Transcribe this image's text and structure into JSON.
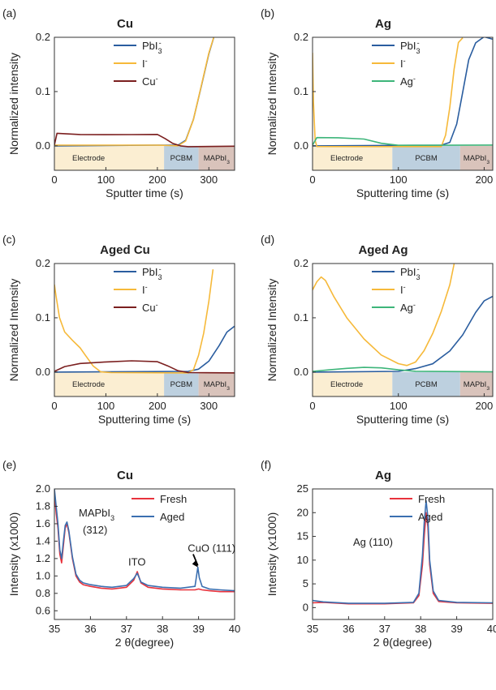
{
  "figure": {
    "colors": {
      "pbi3": "#2a5d9f",
      "iodide": "#f6b93a",
      "cu": "#7b1f1f",
      "ag": "#3db57a",
      "fresh": "#e8323c",
      "aged": "#3b6fb0",
      "electrode_bg": "#fbeed2",
      "pcbm_bg": "#bdd0df",
      "mapbi3_bg": "#d9c3bb"
    }
  },
  "chart_data": [
    {
      "panel": "(a)",
      "type": "line",
      "title": "Cu",
      "xlabel": "Sputter time (s)",
      "ylabel": "Normalized intensity",
      "xlim": [
        0,
        350
      ],
      "ylim": [
        -0.045,
        0.2
      ],
      "xticks": [
        "0",
        "100",
        "200",
        "300"
      ],
      "yticks": [
        "0.0",
        "0.1",
        "0.2"
      ],
      "regions": [
        {
          "label": "Electrode",
          "from": 0,
          "to": 213
        },
        {
          "label": "PCBM",
          "from": 213,
          "to": 280
        },
        {
          "label": "MAPbI3",
          "from": 280,
          "to": 350
        }
      ],
      "legend": [
        "PbI3-",
        "I-",
        "Cu-"
      ],
      "series": [
        {
          "name": "PbI3-",
          "color_key": "pbi3",
          "x": [
            0,
            200,
            240,
            255,
            270,
            285,
            300,
            310
          ],
          "y": [
            0,
            0,
            0,
            0.01,
            0.05,
            0.11,
            0.17,
            0.2
          ]
        },
        {
          "name": "I-",
          "color_key": "iodide",
          "x": [
            0,
            200,
            240,
            255,
            270,
            285,
            300,
            310
          ],
          "y": [
            0,
            0,
            0,
            0.01,
            0.05,
            0.11,
            0.17,
            0.2
          ]
        },
        {
          "name": "Cu-",
          "color_key": "cu",
          "x": [
            0,
            5,
            50,
            100,
            150,
            200,
            215,
            230,
            245,
            260,
            350
          ],
          "y": [
            0,
            0.023,
            0.022,
            0.022,
            0.021,
            0.02,
            0.012,
            0.004,
            0.001,
            0,
            0
          ]
        }
      ]
    },
    {
      "panel": "(b)",
      "type": "line",
      "title": "Ag",
      "xlabel": "Sputtering time (s)",
      "ylabel": "Normalized Intensity",
      "xlim": [
        0,
        210
      ],
      "ylim": [
        -0.045,
        0.2
      ],
      "xticks": [
        "0",
        "100",
        "200"
      ],
      "yticks": [
        "0.0",
        "0.1",
        "0.2"
      ],
      "regions": [
        {
          "label": "Electrode",
          "from": 0,
          "to": 93
        },
        {
          "label": "PCBM",
          "from": 93,
          "to": 172
        },
        {
          "label": "MAPbI3",
          "from": 172,
          "to": 210
        }
      ],
      "legend": [
        "PbI3-",
        "I-",
        "Ag-"
      ],
      "series": [
        {
          "name": "PbI3-",
          "color_key": "pbi3",
          "x": [
            0,
            150,
            160,
            168,
            175,
            182,
            190,
            200,
            210
          ],
          "y": [
            0,
            0,
            0.005,
            0.04,
            0.1,
            0.16,
            0.19,
            0.2,
            0.195
          ]
        },
        {
          "name": "I-",
          "color_key": "iodide",
          "x": [
            0,
            1,
            3,
            5,
            150,
            155,
            160,
            165,
            170,
            175
          ],
          "y": [
            0.17,
            0.08,
            0.01,
            0,
            0,
            0.02,
            0.07,
            0.14,
            0.19,
            0.2
          ]
        },
        {
          "name": "Ag-",
          "color_key": "ag",
          "x": [
            0,
            5,
            30,
            60,
            80,
            100,
            210
          ],
          "y": [
            0,
            0.015,
            0.016,
            0.014,
            0.005,
            0,
            0
          ]
        }
      ]
    },
    {
      "panel": "(c)",
      "type": "line",
      "title": "Aged Cu",
      "xlabel": "Sputtering time (s)",
      "ylabel": "Normalized Intensity",
      "xlim": [
        0,
        350
      ],
      "ylim": [
        -0.045,
        0.2
      ],
      "xticks": [
        "0",
        "100",
        "200",
        "300"
      ],
      "yticks": [
        "0.0",
        "0.1",
        "0.2"
      ],
      "regions": [
        {
          "label": "Electrode",
          "from": 0,
          "to": 213
        },
        {
          "label": "PCBM",
          "from": 213,
          "to": 280
        },
        {
          "label": "MAPbI3",
          "from": 280,
          "to": 350
        }
      ],
      "legend": [
        "PbI3-",
        "I-",
        "Cu-"
      ],
      "series": [
        {
          "name": "PbI3-",
          "color_key": "pbi3",
          "x": [
            0,
            260,
            280,
            300,
            320,
            335,
            350
          ],
          "y": [
            0,
            0,
            0.004,
            0.02,
            0.05,
            0.075,
            0.085
          ]
        },
        {
          "name": "I-",
          "color_key": "iodide",
          "x": [
            0,
            3,
            10,
            20,
            35,
            50,
            60,
            75,
            90,
            110,
            260,
            270,
            280,
            290,
            300,
            308
          ],
          "y": [
            0.16,
            0.14,
            0.1,
            0.075,
            0.06,
            0.045,
            0.03,
            0.01,
            0,
            0,
            0,
            0.005,
            0.03,
            0.07,
            0.13,
            0.19
          ]
        },
        {
          "name": "Cu-",
          "color_key": "cu",
          "x": [
            0,
            20,
            50,
            100,
            150,
            200,
            220,
            240,
            260,
            350
          ],
          "y": [
            0,
            0.01,
            0.017,
            0.02,
            0.021,
            0.018,
            0.01,
            0.002,
            0,
            0
          ]
        }
      ]
    },
    {
      "panel": "(d)",
      "type": "line",
      "title": "Aged Ag",
      "xlabel": "Sputtering time (s)",
      "ylabel": "Normalized Intensity",
      "xlim": [
        0,
        210
      ],
      "ylim": [
        -0.045,
        0.2
      ],
      "xticks": [
        "0",
        "100",
        "200"
      ],
      "yticks": [
        "0.0",
        "0.1",
        "0.2"
      ],
      "regions": [
        {
          "label": "Electrode",
          "from": 0,
          "to": 93
        },
        {
          "label": "PCBM",
          "from": 93,
          "to": 172
        },
        {
          "label": "MAPbI3",
          "from": 172,
          "to": 210
        }
      ],
      "legend": [
        "PbI3-",
        "I-",
        "Ag-"
      ],
      "series": [
        {
          "name": "PbI3-",
          "color_key": "pbi3",
          "x": [
            0,
            100,
            120,
            140,
            160,
            175,
            190,
            200,
            210
          ],
          "y": [
            0,
            0,
            0.005,
            0.015,
            0.04,
            0.07,
            0.11,
            0.13,
            0.138
          ]
        },
        {
          "name": "I-",
          "color_key": "iodide",
          "x": [
            0,
            5,
            10,
            15,
            25,
            40,
            60,
            80,
            100,
            110,
            120,
            130,
            140,
            150,
            160,
            165
          ],
          "y": [
            0.15,
            0.165,
            0.175,
            0.17,
            0.14,
            0.1,
            0.06,
            0.03,
            0.015,
            0.013,
            0.02,
            0.04,
            0.07,
            0.11,
            0.16,
            0.2
          ]
        },
        {
          "name": "Ag-",
          "color_key": "ag",
          "x": [
            0,
            20,
            40,
            60,
            80,
            100,
            120,
            210
          ],
          "y": [
            0,
            0.004,
            0.008,
            0.01,
            0.008,
            0.003,
            0,
            0
          ]
        }
      ]
    },
    {
      "panel": "(e)",
      "type": "line",
      "title": "Cu",
      "xlabel": "2 θ(degree)",
      "ylabel": "Intensity (x1000)",
      "xlim": [
        35,
        40
      ],
      "ylim": [
        0.5,
        2.0
      ],
      "xticks": [
        "35",
        "36",
        "37",
        "38",
        "39",
        "40"
      ],
      "yticks": [
        "0.6",
        "0.8",
        "1.0",
        "1.2",
        "1.4",
        "1.6",
        "1.8",
        "2.0"
      ],
      "legend": [
        "Fresh",
        "Aged"
      ],
      "annotations": [
        "MAPbI3",
        "(312)",
        "ITO",
        "CuO (111)"
      ],
      "series": [
        {
          "name": "Fresh",
          "color_key": "fresh",
          "x": [
            35,
            35.05,
            35.1,
            35.15,
            35.2,
            35.25,
            35.3,
            35.35,
            35.4,
            35.5,
            35.6,
            35.7,
            35.8,
            36.0,
            36.3,
            36.6,
            37.0,
            37.2,
            37.3,
            37.4,
            37.6,
            38.0,
            38.5,
            38.9,
            39.0,
            39.1,
            39.3,
            39.6,
            40.0
          ],
          "y": [
            1.95,
            1.72,
            1.55,
            1.25,
            1.15,
            1.35,
            1.55,
            1.6,
            1.5,
            1.2,
            1.0,
            0.93,
            0.9,
            0.88,
            0.86,
            0.85,
            0.87,
            0.95,
            1.05,
            0.92,
            0.87,
            0.85,
            0.84,
            0.84,
            0.85,
            0.84,
            0.83,
            0.82,
            0.82
          ]
        },
        {
          "name": "Aged",
          "color_key": "aged",
          "x": [
            35,
            35.05,
            35.1,
            35.15,
            35.2,
            35.25,
            35.3,
            35.35,
            35.4,
            35.5,
            35.6,
            35.7,
            35.8,
            36.0,
            36.3,
            36.6,
            37.0,
            37.2,
            37.3,
            37.4,
            37.6,
            38.0,
            38.5,
            38.9,
            38.98,
            39.02,
            39.1,
            39.3,
            39.6,
            40.0
          ],
          "y": [
            2.0,
            1.8,
            1.6,
            1.3,
            1.2,
            1.4,
            1.58,
            1.62,
            1.52,
            1.22,
            1.02,
            0.95,
            0.92,
            0.9,
            0.88,
            0.87,
            0.89,
            0.97,
            1.03,
            0.93,
            0.89,
            0.87,
            0.86,
            0.88,
            1.1,
            0.98,
            0.88,
            0.85,
            0.84,
            0.83
          ]
        }
      ]
    },
    {
      "panel": "(f)",
      "type": "line",
      "title": "Ag",
      "xlabel": "2 θ(degree)",
      "ylabel": "Intensity (x1000)",
      "xlim": [
        35,
        40
      ],
      "ylim": [
        -2.5,
        25
      ],
      "xticks": [
        "35",
        "36",
        "37",
        "38",
        "39",
        "40"
      ],
      "yticks": [
        "0",
        "5",
        "10",
        "15",
        "20",
        "25"
      ],
      "legend": [
        "Fresh",
        "Aged"
      ],
      "annotations": [
        "Ag (110)"
      ],
      "series": [
        {
          "name": "Fresh",
          "color_key": "fresh",
          "x": [
            35,
            35.3,
            36,
            37,
            37.8,
            37.95,
            38.05,
            38.1,
            38.15,
            38.2,
            38.25,
            38.35,
            38.5,
            39,
            40
          ],
          "y": [
            1.0,
            1.1,
            0.8,
            0.8,
            1.0,
            2.5,
            9,
            15,
            20,
            17,
            9,
            3,
            1.3,
            1.0,
            0.9
          ]
        },
        {
          "name": "Aged",
          "color_key": "aged",
          "x": [
            35,
            35.3,
            36,
            37,
            37.8,
            37.95,
            38.05,
            38.1,
            38.15,
            38.2,
            38.25,
            38.35,
            38.5,
            39,
            40
          ],
          "y": [
            1.5,
            1.2,
            0.9,
            0.9,
            1.1,
            3,
            11,
            18,
            22.5,
            19,
            10,
            3.5,
            1.5,
            1.1,
            1.0
          ]
        }
      ]
    }
  ]
}
